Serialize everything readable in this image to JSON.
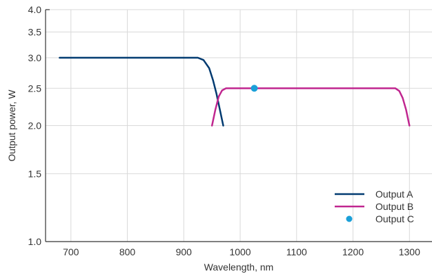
{
  "chart_data": {
    "type": "line",
    "title": "",
    "xlabel": "Wavelength, nm",
    "ylabel": "Output power, W",
    "xlim": [
      655,
      1340
    ],
    "ylim": [
      1.0,
      4.0
    ],
    "y_scale": "log",
    "grid": true,
    "legend_position": "bottom-right",
    "x_ticks": [
      700,
      800,
      900,
      1000,
      1100,
      1200,
      1300
    ],
    "x_tick_labels": [
      "700",
      "800",
      "900",
      "1000",
      "1100",
      "1200",
      "1300"
    ],
    "y_ticks": [
      1.0,
      1.5,
      2.0,
      2.5,
      3.0,
      3.5,
      4.0
    ],
    "y_tick_labels": [
      "1.0",
      "1.5",
      "2.0",
      "2.5",
      "3.0",
      "3.5",
      "4.0"
    ],
    "series": [
      {
        "name": "Output A",
        "kind": "line",
        "color": "#003a70",
        "points": [
          [
            680,
            3.0
          ],
          [
            925,
            3.0
          ],
          [
            935,
            2.96
          ],
          [
            945,
            2.82
          ],
          [
            952,
            2.62
          ],
          [
            958,
            2.42
          ],
          [
            964,
            2.2
          ],
          [
            970,
            2.0
          ]
        ]
      },
      {
        "name": "Output B",
        "kind": "line",
        "color": "#c0268f",
        "points": [
          [
            950,
            2.0
          ],
          [
            956,
            2.2
          ],
          [
            962,
            2.38
          ],
          [
            968,
            2.47
          ],
          [
            975,
            2.5
          ],
          [
            1275,
            2.5
          ],
          [
            1282,
            2.46
          ],
          [
            1288,
            2.36
          ],
          [
            1294,
            2.2
          ],
          [
            1300,
            2.0
          ]
        ]
      },
      {
        "name": "Output C",
        "kind": "point",
        "color": "#1ba0d8",
        "points": [
          [
            1025,
            2.5
          ]
        ]
      }
    ]
  }
}
